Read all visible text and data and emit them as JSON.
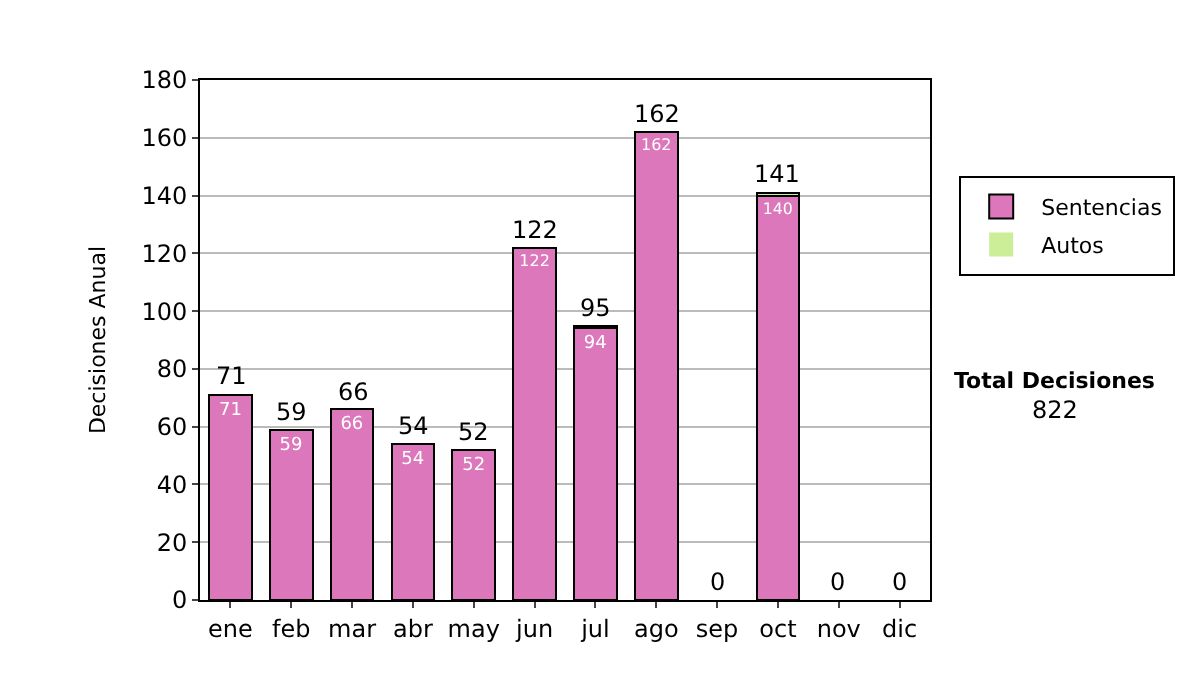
{
  "chart_data": {
    "type": "bar",
    "stacked": true,
    "ylabel": "Decisiones Anual",
    "categories": [
      "ene",
      "feb",
      "mar",
      "abr",
      "may",
      "jun",
      "jul",
      "ago",
      "sep",
      "oct",
      "nov",
      "dic"
    ],
    "series": [
      {
        "name": "Sentencias",
        "color": "#dd77bb",
        "values": [
          71,
          59,
          66,
          54,
          52,
          122,
          94,
          162,
          0,
          140,
          0,
          0
        ],
        "value_labels": [
          "71",
          "59",
          "66",
          "54",
          "52",
          "122",
          "94",
          "162",
          null,
          "140",
          null,
          null
        ]
      },
      {
        "name": "Autos",
        "color": "#ccee99",
        "values": [
          0,
          0,
          0,
          0,
          0,
          0,
          1,
          0,
          0,
          1,
          0,
          0
        ]
      }
    ],
    "totals": [
      "71",
      "59",
      "66",
      "54",
      "52",
      "122",
      "95",
      "162",
      "0",
      "141",
      "0",
      "0"
    ],
    "ylim": [
      0,
      180
    ],
    "yticks": [
      0,
      20,
      40,
      60,
      80,
      100,
      120,
      140,
      160,
      180
    ],
    "grid": "y",
    "legend": "right",
    "annotations": [
      "Total Decisiones",
      "822"
    ]
  }
}
